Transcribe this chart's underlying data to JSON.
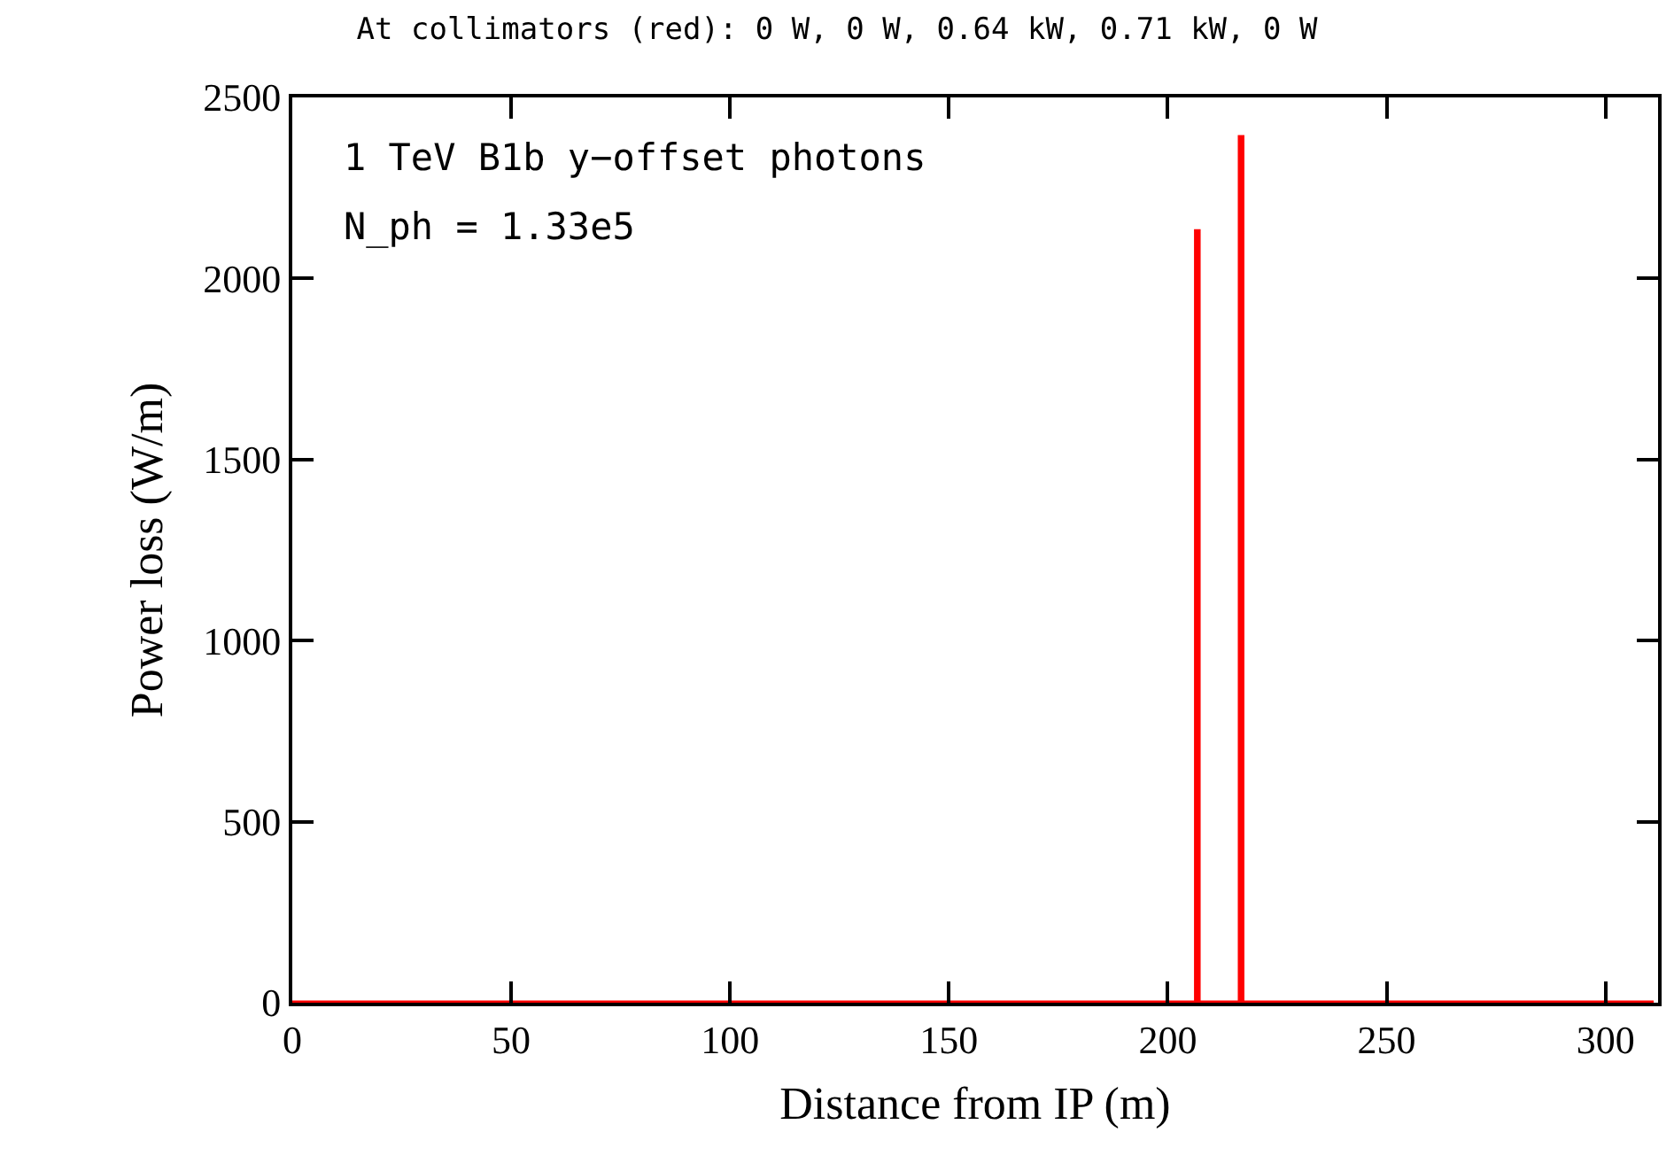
{
  "chart_data": {
    "type": "step",
    "title": "At collimators (red): 0 W, 0 W, 0.64 kW, 0.71 kW, 0 W",
    "xlabel": "Distance from IP (m)",
    "ylabel": "Power loss (W/m)",
    "annotations": [
      "1 TeV B1b y−offset photons",
      "N_ph = 1.33e5"
    ],
    "x": [
      0,
      206.5,
      207,
      216.5,
      217,
      311
    ],
    "series": [
      {
        "color": "#ff0000",
        "values": [
          0,
          2130,
          0,
          2390,
          0,
          0
        ]
      }
    ],
    "xlim": [
      0,
      312
    ],
    "xticks": [
      0,
      50,
      100,
      150,
      200,
      250,
      300
    ],
    "ylim": [
      0,
      2500
    ],
    "yticks": [
      0,
      500,
      1000,
      1500,
      2000,
      2500
    ]
  }
}
